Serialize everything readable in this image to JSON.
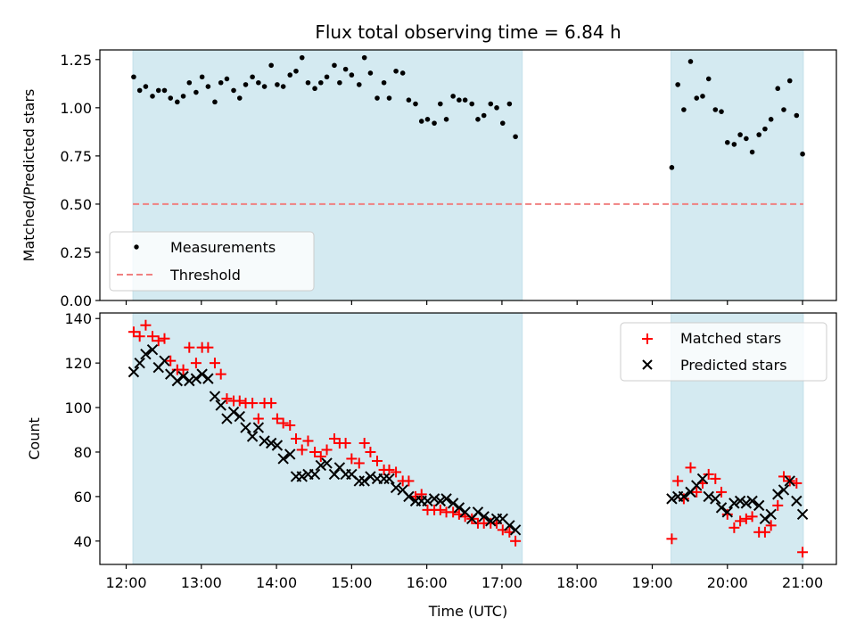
{
  "chart_data": [
    {
      "type": "scatter",
      "title": "Flux total observing time = 6.84 h",
      "xlabel": "",
      "ylabel": "Matched/Predicted stars",
      "xlim": [
        11.65,
        21.45
      ],
      "ylim": [
        0.0,
        1.3
      ],
      "yticks": [
        0.0,
        0.25,
        0.5,
        0.75,
        1.0,
        1.25
      ],
      "ytick_labels": [
        "0.00",
        "0.25",
        "0.50",
        "0.75",
        "1.00",
        "1.25"
      ],
      "xticks": [
        12,
        13,
        14,
        15,
        16,
        17,
        18,
        19,
        20,
        21
      ],
      "grid": false,
      "legend_position": "lower-left",
      "shaded_intervals": [
        [
          12.09,
          17.27
        ],
        [
          19.25,
          21.01
        ]
      ],
      "shade_color": "#d4eaf1",
      "threshold": {
        "name": "Threshold",
        "value": 0.5,
        "color": "#f08080",
        "style": "dashed",
        "x_range": [
          12.09,
          21.01
        ]
      },
      "series": [
        {
          "name": "Measurements",
          "color": "#000000",
          "marker": "dot",
          "x": [
            12.1,
            12.18,
            12.26,
            12.35,
            12.43,
            12.51,
            12.59,
            12.68,
            12.76,
            12.84,
            12.93,
            13.01,
            13.09,
            13.18,
            13.26,
            13.34,
            13.43,
            13.51,
            13.59,
            13.68,
            13.76,
            13.84,
            13.93,
            14.01,
            14.09,
            14.18,
            14.26,
            14.34,
            14.42,
            14.51,
            14.59,
            14.67,
            14.77,
            14.84,
            14.92,
            15.0,
            15.1,
            15.17,
            15.25,
            15.34,
            15.43,
            15.5,
            15.59,
            15.68,
            15.76,
            15.85,
            15.93,
            16.01,
            16.1,
            16.18,
            16.26,
            16.35,
            16.43,
            16.51,
            16.6,
            16.68,
            16.76,
            16.85,
            16.93,
            17.01,
            17.1,
            17.18,
            19.26,
            19.34,
            19.42,
            19.51,
            19.59,
            19.67,
            19.75,
            19.84,
            19.92,
            20.0,
            20.09,
            20.17,
            20.25,
            20.33,
            20.42,
            20.5,
            20.58,
            20.67,
            20.75,
            20.83,
            20.92,
            21.0
          ],
          "y": [
            1.16,
            1.09,
            1.11,
            1.06,
            1.09,
            1.09,
            1.05,
            1.03,
            1.06,
            1.13,
            1.08,
            1.16,
            1.11,
            1.03,
            1.13,
            1.15,
            1.09,
            1.05,
            1.12,
            1.16,
            1.13,
            1.11,
            1.22,
            1.12,
            1.11,
            1.17,
            1.19,
            1.26,
            1.13,
            1.1,
            1.13,
            1.16,
            1.22,
            1.13,
            1.2,
            1.17,
            1.12,
            1.26,
            1.18,
            1.05,
            1.13,
            1.05,
            1.19,
            1.18,
            1.04,
            1.02,
            0.93,
            0.94,
            0.92,
            1.02,
            0.94,
            1.06,
            1.04,
            1.04,
            1.02,
            0.94,
            0.96,
            1.02,
            1.0,
            0.92,
            1.02,
            0.85,
            0.69,
            1.12,
            0.99,
            1.24,
            1.05,
            1.06,
            1.15,
            0.99,
            0.98,
            0.82,
            0.81,
            0.86,
            0.84,
            0.77,
            0.86,
            0.89,
            0.94,
            1.1,
            0.99,
            1.14,
            0.96,
            0.76
          ]
        }
      ]
    },
    {
      "type": "scatter",
      "title": "",
      "xlabel": "Time (UTC)",
      "ylabel": "Count",
      "xlim": [
        11.65,
        21.45
      ],
      "ylim": [
        29.5,
        142.5
      ],
      "yticks": [
        40,
        60,
        80,
        100,
        120,
        140
      ],
      "ytick_labels": [
        "40",
        "60",
        "80",
        "100",
        "120",
        "140"
      ],
      "xticks": [
        12,
        13,
        14,
        15,
        16,
        17,
        18,
        19,
        20,
        21
      ],
      "xtick_labels": [
        "12:00",
        "13:00",
        "14:00",
        "15:00",
        "16:00",
        "17:00",
        "18:00",
        "19:00",
        "20:00",
        "21:00"
      ],
      "grid": false,
      "legend_position": "upper-right",
      "shaded_intervals": [
        [
          12.09,
          17.27
        ],
        [
          19.25,
          21.01
        ]
      ],
      "shade_color": "#d4eaf1",
      "series": [
        {
          "name": "Matched stars",
          "color": "#ff0000",
          "marker": "plus",
          "y": [
            134,
            132,
            137,
            132,
            130,
            131,
            121,
            117,
            117,
            127,
            120,
            127,
            127,
            120,
            115,
            104,
            103,
            103,
            102,
            102,
            95,
            102,
            102,
            95,
            93,
            92,
            86,
            81,
            85,
            80,
            78,
            81,
            86,
            84,
            84,
            77,
            75,
            84,
            80,
            76,
            72,
            72,
            71,
            67,
            67,
            60,
            61,
            54,
            54,
            54,
            53,
            53,
            52,
            51,
            50,
            48,
            48,
            48,
            48,
            45,
            44,
            40,
            41,
            67,
            59,
            73,
            62,
            66,
            70,
            68,
            62,
            52,
            46,
            49,
            50,
            51,
            44,
            44,
            47,
            56,
            69,
            67,
            66,
            35
          ]
        },
        {
          "name": "Predicted stars",
          "color": "#000000",
          "marker": "x",
          "y": [
            116,
            120,
            124,
            126,
            118,
            121,
            115,
            112,
            114,
            112,
            113,
            115,
            113,
            105,
            101,
            95,
            98,
            96,
            91,
            87,
            91,
            85,
            84,
            83,
            77,
            79,
            69,
            69,
            70,
            70,
            74,
            75,
            70,
            73,
            70,
            70,
            67,
            67,
            69,
            68,
            68,
            68,
            64,
            63,
            60,
            58,
            58,
            58,
            59,
            58,
            59,
            57,
            55,
            53,
            50,
            53,
            51,
            49,
            50,
            50,
            47,
            45,
            59,
            60,
            60,
            62,
            65,
            68,
            60,
            59,
            55,
            53,
            57,
            58,
            57,
            58,
            56,
            50,
            52,
            61,
            63,
            67,
            58,
            52
          ]
        }
      ]
    }
  ]
}
